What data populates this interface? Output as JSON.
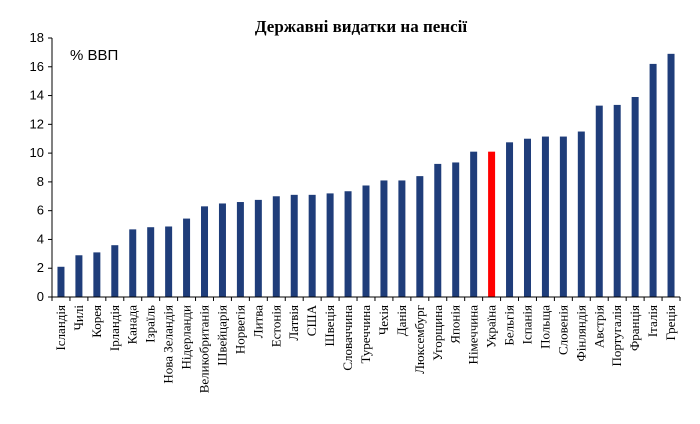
{
  "chart_data": {
    "type": "bar",
    "title": "Державні видатки на пенсії",
    "unit_label": "% ВВП",
    "xlabel": "",
    "ylabel": "",
    "ylim": [
      0,
      18
    ],
    "yticks": [
      0,
      2,
      4,
      6,
      8,
      10,
      12,
      14,
      16,
      18
    ],
    "grid": false,
    "legend": "none",
    "bar_color": "#1f3d7a",
    "highlight_color": "#ff0000",
    "highlight_category": "Україна",
    "categories": [
      "Ісландія",
      "Чилі",
      "Корея",
      "Ірландія",
      "Канада",
      "Ізраїль",
      "Нова Зеландія",
      "Нідерланди",
      "Великобританія",
      "Швейцарія",
      "Норвегія",
      "Литва",
      "Естонія",
      "Латвія",
      "США",
      "Швеція",
      "Словаччина",
      "Туреччина",
      "Чехія",
      "Данія",
      "Люксембург",
      "Угорщина",
      "Японія",
      "Німеччина",
      "Україна",
      "Бельгія",
      "Іспанія",
      "Польща",
      "Словенія",
      "Фінляндія",
      "Австрія",
      "Португалія",
      "Франція",
      "Італія",
      "Греція"
    ],
    "values": [
      2.1,
      2.9,
      3.1,
      3.6,
      4.7,
      4.85,
      4.9,
      5.45,
      6.3,
      6.5,
      6.6,
      6.75,
      7.0,
      7.1,
      7.1,
      7.2,
      7.35,
      7.75,
      8.1,
      8.1,
      8.4,
      9.25,
      9.35,
      10.1,
      10.1,
      10.75,
      11.0,
      11.15,
      11.15,
      11.5,
      13.3,
      13.35,
      13.9,
      16.2,
      16.9
    ]
  }
}
